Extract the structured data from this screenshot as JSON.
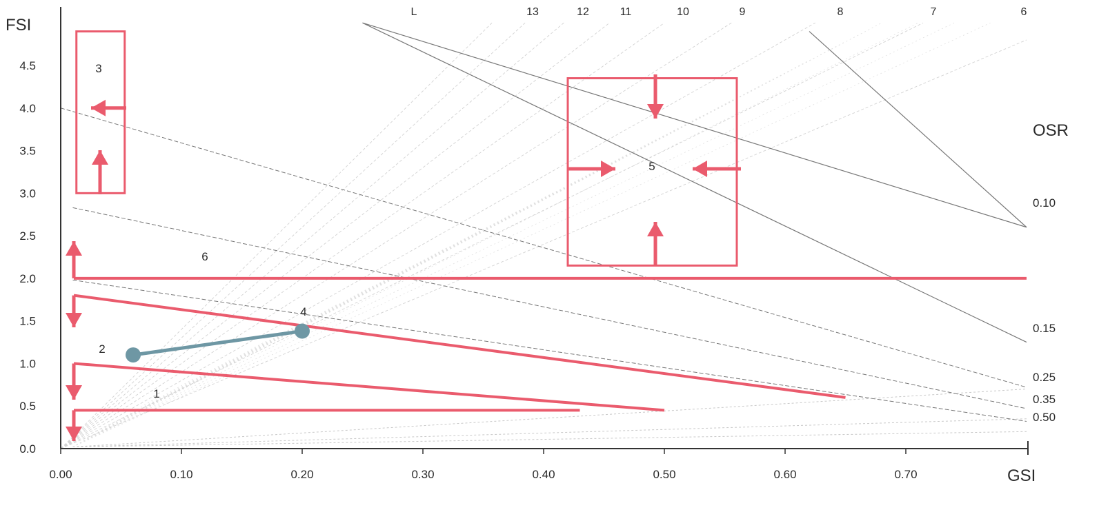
{
  "chart_data": {
    "type": "line",
    "title": "",
    "xlabel": "GSI",
    "ylabel": "FSI",
    "xlim": [
      0,
      0.8
    ],
    "ylim": [
      0,
      5.0
    ],
    "x_ticks": [
      "0.00",
      "0.10",
      "0.20",
      "0.30",
      "0.40",
      "0.50",
      "0.60",
      "0.70"
    ],
    "y_ticks": [
      "0.0",
      "0.5",
      "1.0",
      "1.5",
      "2.0",
      "2.5",
      "3.0",
      "3.5",
      "4.0",
      "4.5"
    ],
    "x_tick_values": [
      0,
      0.1,
      0.2,
      0.3,
      0.4,
      0.5,
      0.6,
      0.7
    ],
    "y_tick_values": [
      0,
      0.5,
      1.0,
      1.5,
      2.0,
      2.5,
      3.0,
      3.5,
      4.0,
      4.5
    ],
    "osr_title": "OSR",
    "osr_lines": [
      {
        "label": "0.10",
        "slope": -10,
        "intercept": 10
      },
      {
        "label": "0.15",
        "slope": -6.667,
        "intercept": 6.667
      },
      {
        "label": "0.25",
        "slope": -4,
        "intercept": 4
      },
      {
        "label": "0.35",
        "slope": -2.857,
        "intercept": 2.857
      },
      {
        "label": "0.50",
        "slope": -2,
        "intercept": 2
      }
    ],
    "osr_label_values": [
      0.1,
      0.15,
      0.25,
      0.35,
      0.5
    ],
    "floor_lines": [
      {
        "label": "L",
        "floors": 14
      },
      {
        "label": "13",
        "floors": 13
      },
      {
        "label": "12",
        "floors": 12
      },
      {
        "label": "11",
        "floors": 11
      },
      {
        "label": "10",
        "floors": 10
      },
      {
        "label": "9",
        "floors": 9
      },
      {
        "label": "8",
        "floors": 8
      },
      {
        "label": "7",
        "floors": 7
      },
      {
        "label": "6",
        "floors": 6
      }
    ],
    "regions": [
      {
        "label": "1",
        "type": "horizontal",
        "fsi": 0.45,
        "x_end": 0.43
      },
      {
        "label": "2",
        "type": "sloped",
        "fsi_start": 1.0,
        "fsi_end": 0.45,
        "x_end": 0.5
      },
      {
        "label": "4",
        "type": "sloped",
        "fsi_start": 1.8,
        "fsi_end": 0.6,
        "x_end": 0.65
      },
      {
        "label": "6",
        "type": "horizontal",
        "fsi": 2.0,
        "x_end": 0.8
      },
      {
        "label": "3",
        "type": "box",
        "x": [
          0.013,
          0.053
        ],
        "y": [
          3.0,
          4.9
        ]
      },
      {
        "label": "5",
        "type": "box",
        "x": [
          0.42,
          0.56
        ],
        "y": [
          2.15,
          4.35
        ]
      }
    ],
    "path": {
      "points": [
        {
          "x": 0.06,
          "y": 1.1
        },
        {
          "x": 0.2,
          "y": 1.38
        }
      ]
    },
    "colors": {
      "regions": "#ea5b6d",
      "path": "#6e97a4",
      "grid": "#9a9a9a",
      "axis": "#333333"
    }
  }
}
